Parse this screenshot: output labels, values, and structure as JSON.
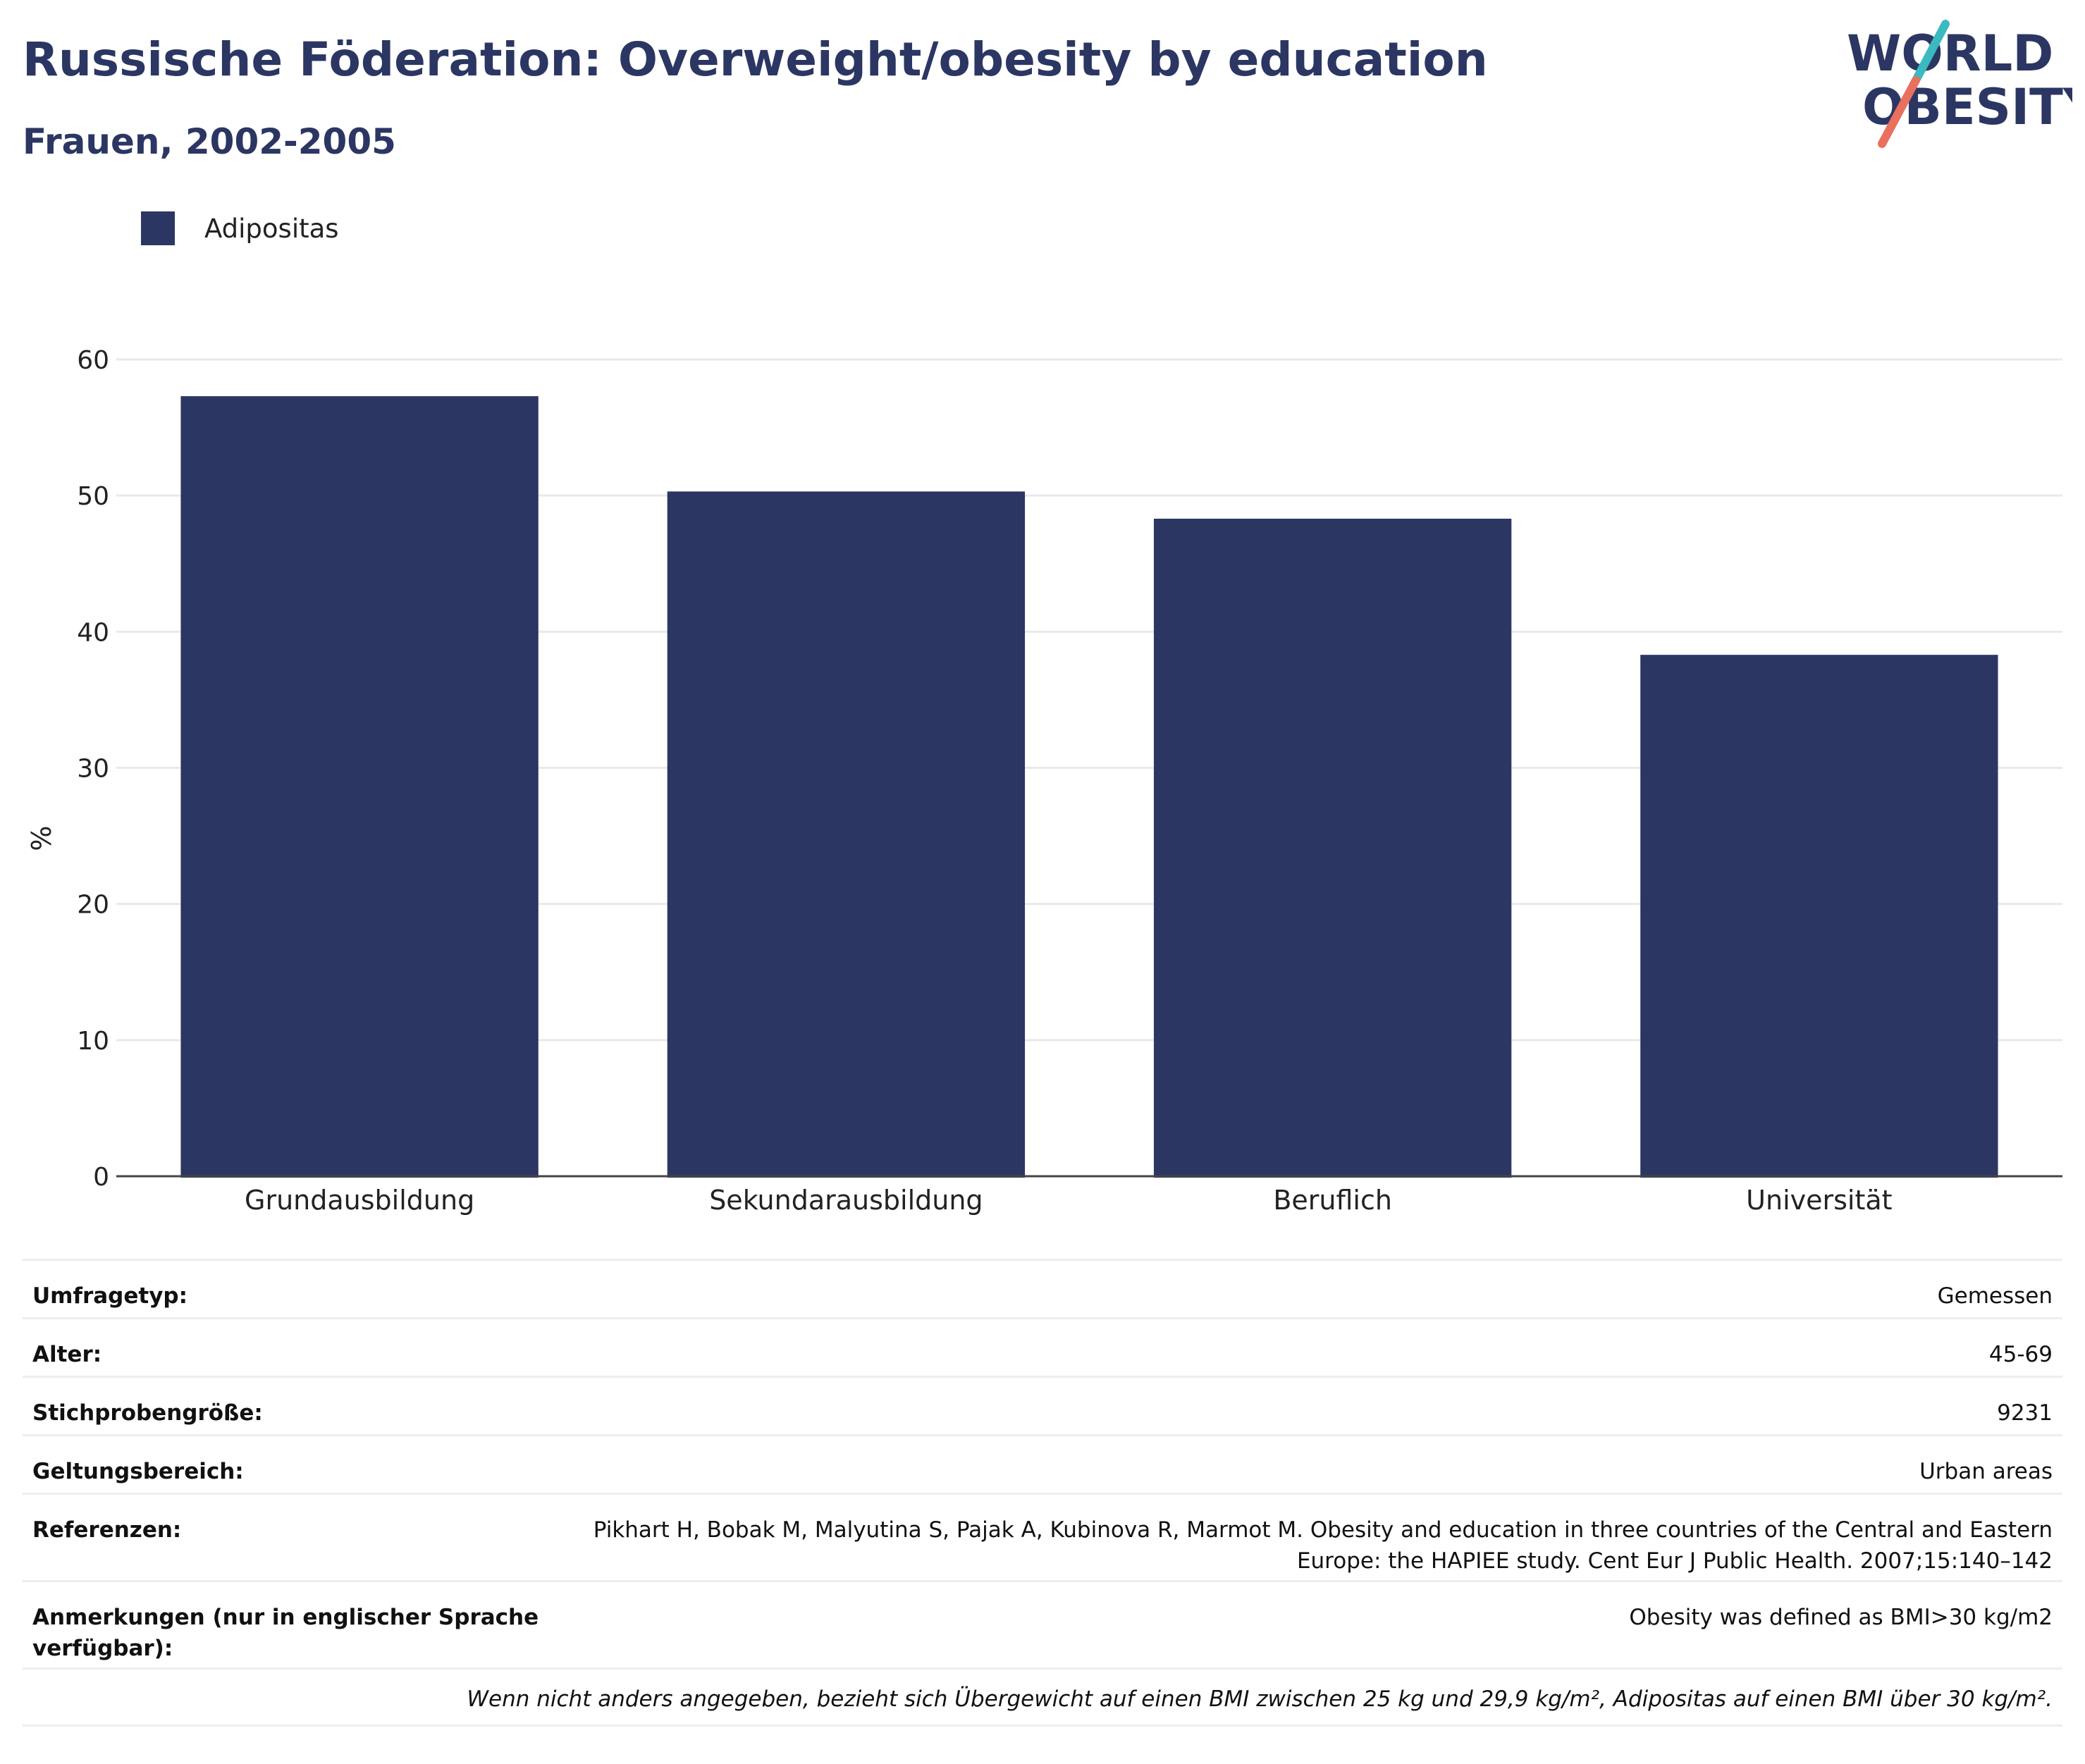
{
  "header": {
    "title": "Russische Föderation: Overweight/obesity by education",
    "subtitle": "Frauen, 2002-2005"
  },
  "logo": {
    "line1": "WORLD",
    "line2": "OBESITY",
    "accent_teal": "#3bb9c1",
    "accent_coral": "#e8705d"
  },
  "legend": {
    "label": "Adipositas",
    "color": "#2b3663"
  },
  "chart_data": {
    "type": "bar",
    "title": "Russische Föderation: Overweight/obesity by education",
    "subtitle": "Frauen, 2002-2005",
    "categories": [
      "Grundausbildung",
      "Sekundarausbildung",
      "Beruflich",
      "Universität"
    ],
    "series": [
      {
        "name": "Adipositas",
        "color": "#2b3663",
        "values": [
          57.3,
          50.3,
          48.3,
          38.3
        ]
      }
    ],
    "xlabel": "",
    "ylabel": "%",
    "ylim": [
      0,
      60
    ],
    "yticks": [
      0,
      10,
      20,
      30,
      40,
      50,
      60
    ],
    "grid": true,
    "legend_position": "top-left"
  },
  "meta": {
    "survey_type": {
      "label": "Umfragetyp:",
      "value": "Gemessen"
    },
    "age": {
      "label": "Alter:",
      "value": "45-69"
    },
    "sample_size": {
      "label": "Stichprobengröße:",
      "value": "9231"
    },
    "scope": {
      "label": "Geltungsbereich:",
      "value": "Urban areas"
    },
    "references": {
      "label": "Referenzen:",
      "value_line1": "Pikhart H, Bobak M, Malyutina S, Pajak A, Kubinova R, Marmot M. Obesity and education in three countries of the Central and Eastern",
      "value_line2": "Europe: the HAPIEE study. Cent Eur J Public Health. 2007;15:140–142"
    },
    "notes": {
      "label": "Anmerkungen (nur in englischer Sprache verfügbar):",
      "value": "Obesity was defined as BMI>30 kg/m2"
    },
    "footnote": "Wenn nicht anders angegeben, bezieht sich Übergewicht auf einen BMI zwischen 25 kg und 29,9 kg/m², Adipositas auf einen BMI über 30 kg/m²."
  }
}
